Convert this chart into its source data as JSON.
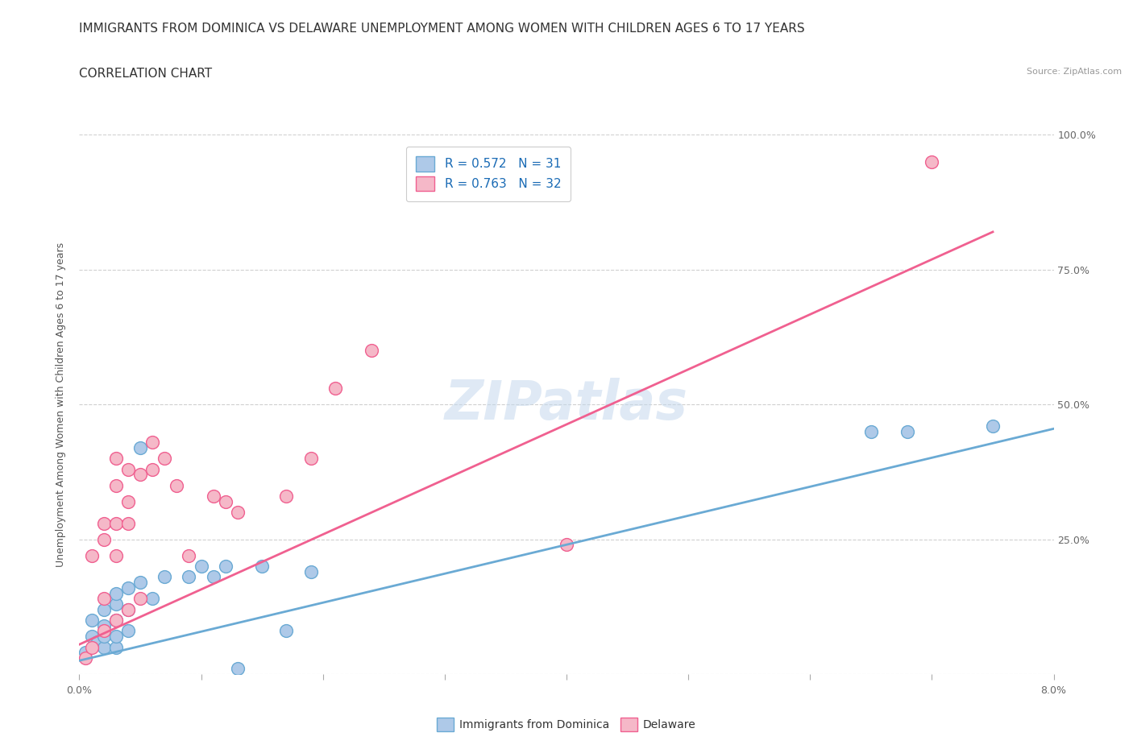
{
  "title_line1": "IMMIGRANTS FROM DOMINICA VS DELAWARE UNEMPLOYMENT AMONG WOMEN WITH CHILDREN AGES 6 TO 17 YEARS",
  "title_line2": "CORRELATION CHART",
  "source_text": "Source: ZipAtlas.com",
  "watermark": "ZIPatlas",
  "ylabel": "Unemployment Among Women with Children Ages 6 to 17 years",
  "xlim": [
    0.0,
    0.08
  ],
  "ylim": [
    0.0,
    1.0
  ],
  "xticks": [
    0.0,
    0.01,
    0.02,
    0.03,
    0.04,
    0.05,
    0.06,
    0.07,
    0.08
  ],
  "xticklabels": [
    "0.0%",
    "",
    "",
    "",
    "",
    "",
    "",
    "",
    "8.0%"
  ],
  "yticks": [
    0.0,
    0.25,
    0.5,
    0.75,
    1.0
  ],
  "yticklabels_right": [
    "",
    "25.0%",
    "50.0%",
    "75.0%",
    "100.0%"
  ],
  "legend_blue_label": "R = 0.572   N = 31",
  "legend_pink_label": "R = 0.763   N = 32",
  "blue_fill": "#aec9e8",
  "pink_fill": "#f5b8c8",
  "blue_edge": "#6aaad4",
  "pink_edge": "#f06090",
  "blue_line_color": "#6aaad4",
  "pink_line_color": "#f06090",
  "legend_text_color": "#1a6bb5",
  "blue_scatter": [
    [
      0.0005,
      0.04
    ],
    [
      0.001,
      0.07
    ],
    [
      0.001,
      0.1
    ],
    [
      0.0015,
      0.06
    ],
    [
      0.002,
      0.05
    ],
    [
      0.002,
      0.07
    ],
    [
      0.002,
      0.09
    ],
    [
      0.002,
      0.12
    ],
    [
      0.003,
      0.05
    ],
    [
      0.003,
      0.07
    ],
    [
      0.003,
      0.1
    ],
    [
      0.003,
      0.13
    ],
    [
      0.003,
      0.15
    ],
    [
      0.004,
      0.08
    ],
    [
      0.004,
      0.12
    ],
    [
      0.004,
      0.16
    ],
    [
      0.005,
      0.17
    ],
    [
      0.005,
      0.42
    ],
    [
      0.006,
      0.14
    ],
    [
      0.007,
      0.18
    ],
    [
      0.009,
      0.18
    ],
    [
      0.01,
      0.2
    ],
    [
      0.011,
      0.18
    ],
    [
      0.012,
      0.2
    ],
    [
      0.013,
      0.01
    ],
    [
      0.015,
      0.2
    ],
    [
      0.017,
      0.08
    ],
    [
      0.019,
      0.19
    ],
    [
      0.065,
      0.45
    ],
    [
      0.068,
      0.45
    ],
    [
      0.075,
      0.46
    ]
  ],
  "pink_scatter": [
    [
      0.0005,
      0.03
    ],
    [
      0.001,
      0.05
    ],
    [
      0.001,
      0.22
    ],
    [
      0.002,
      0.08
    ],
    [
      0.002,
      0.14
    ],
    [
      0.002,
      0.25
    ],
    [
      0.002,
      0.28
    ],
    [
      0.003,
      0.1
    ],
    [
      0.003,
      0.22
    ],
    [
      0.003,
      0.28
    ],
    [
      0.003,
      0.35
    ],
    [
      0.003,
      0.4
    ],
    [
      0.004,
      0.12
    ],
    [
      0.004,
      0.28
    ],
    [
      0.004,
      0.32
    ],
    [
      0.004,
      0.38
    ],
    [
      0.005,
      0.14
    ],
    [
      0.005,
      0.37
    ],
    [
      0.006,
      0.38
    ],
    [
      0.006,
      0.43
    ],
    [
      0.007,
      0.4
    ],
    [
      0.008,
      0.35
    ],
    [
      0.009,
      0.22
    ],
    [
      0.011,
      0.33
    ],
    [
      0.012,
      0.32
    ],
    [
      0.013,
      0.3
    ],
    [
      0.017,
      0.33
    ],
    [
      0.019,
      0.4
    ],
    [
      0.021,
      0.53
    ],
    [
      0.024,
      0.6
    ],
    [
      0.04,
      0.24
    ],
    [
      0.07,
      0.95
    ]
  ],
  "blue_line_x": [
    0.0,
    0.08
  ],
  "blue_line_y": [
    0.025,
    0.455
  ],
  "pink_line_x": [
    0.0,
    0.075
  ],
  "pink_line_y": [
    0.055,
    0.82
  ],
  "background_color": "#ffffff",
  "grid_color": "#d0d0d0",
  "title_fontsize": 11,
  "axis_label_fontsize": 9,
  "tick_fontsize": 9,
  "legend_fontsize": 11
}
